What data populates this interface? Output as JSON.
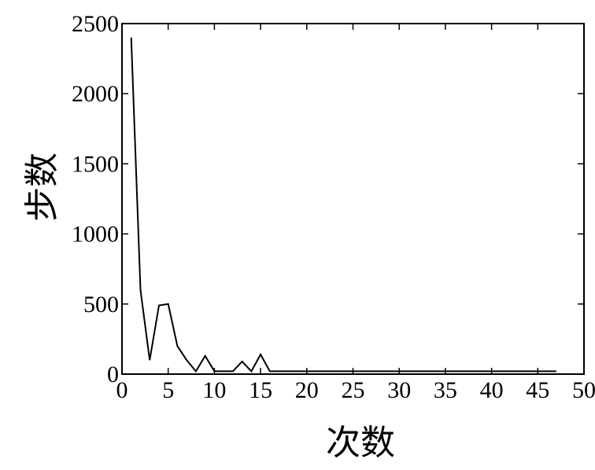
{
  "chart_data": {
    "type": "line",
    "xlabel": "次数",
    "ylabel": "步数",
    "xlim": [
      0,
      50
    ],
    "ylim": [
      0,
      2500
    ],
    "xticks": [
      0,
      5,
      10,
      15,
      20,
      25,
      30,
      35,
      40,
      45,
      50
    ],
    "yticks": [
      0,
      500,
      1000,
      1500,
      2000,
      2500
    ],
    "xtick_labels": [
      "0",
      "5",
      "10",
      "15",
      "20",
      "25",
      "30",
      "35",
      "40",
      "45",
      "50"
    ],
    "ytick_labels": [
      "0",
      "500",
      "1000",
      "1500",
      "2000",
      "2500"
    ],
    "grid": false,
    "series": [
      {
        "x": [
          1,
          2,
          3,
          4,
          5,
          6,
          7,
          8,
          9,
          10,
          11,
          12,
          13,
          14,
          15,
          16,
          17,
          18,
          19,
          20,
          21,
          22,
          23,
          24,
          25,
          26,
          27,
          28,
          29,
          30,
          31,
          32,
          33,
          34,
          35,
          36,
          37,
          38,
          39,
          40,
          41,
          42,
          43,
          44,
          45,
          46,
          47
        ],
        "y": [
          2400,
          600,
          100,
          490,
          500,
          200,
          100,
          20,
          130,
          20,
          20,
          20,
          90,
          20,
          140,
          20,
          20,
          20,
          20,
          20,
          20,
          20,
          20,
          20,
          20,
          20,
          20,
          20,
          20,
          20,
          20,
          20,
          20,
          20,
          20,
          20,
          20,
          20,
          20,
          20,
          20,
          20,
          20,
          20,
          20,
          20,
          20
        ],
        "color": "#000000"
      }
    ]
  }
}
